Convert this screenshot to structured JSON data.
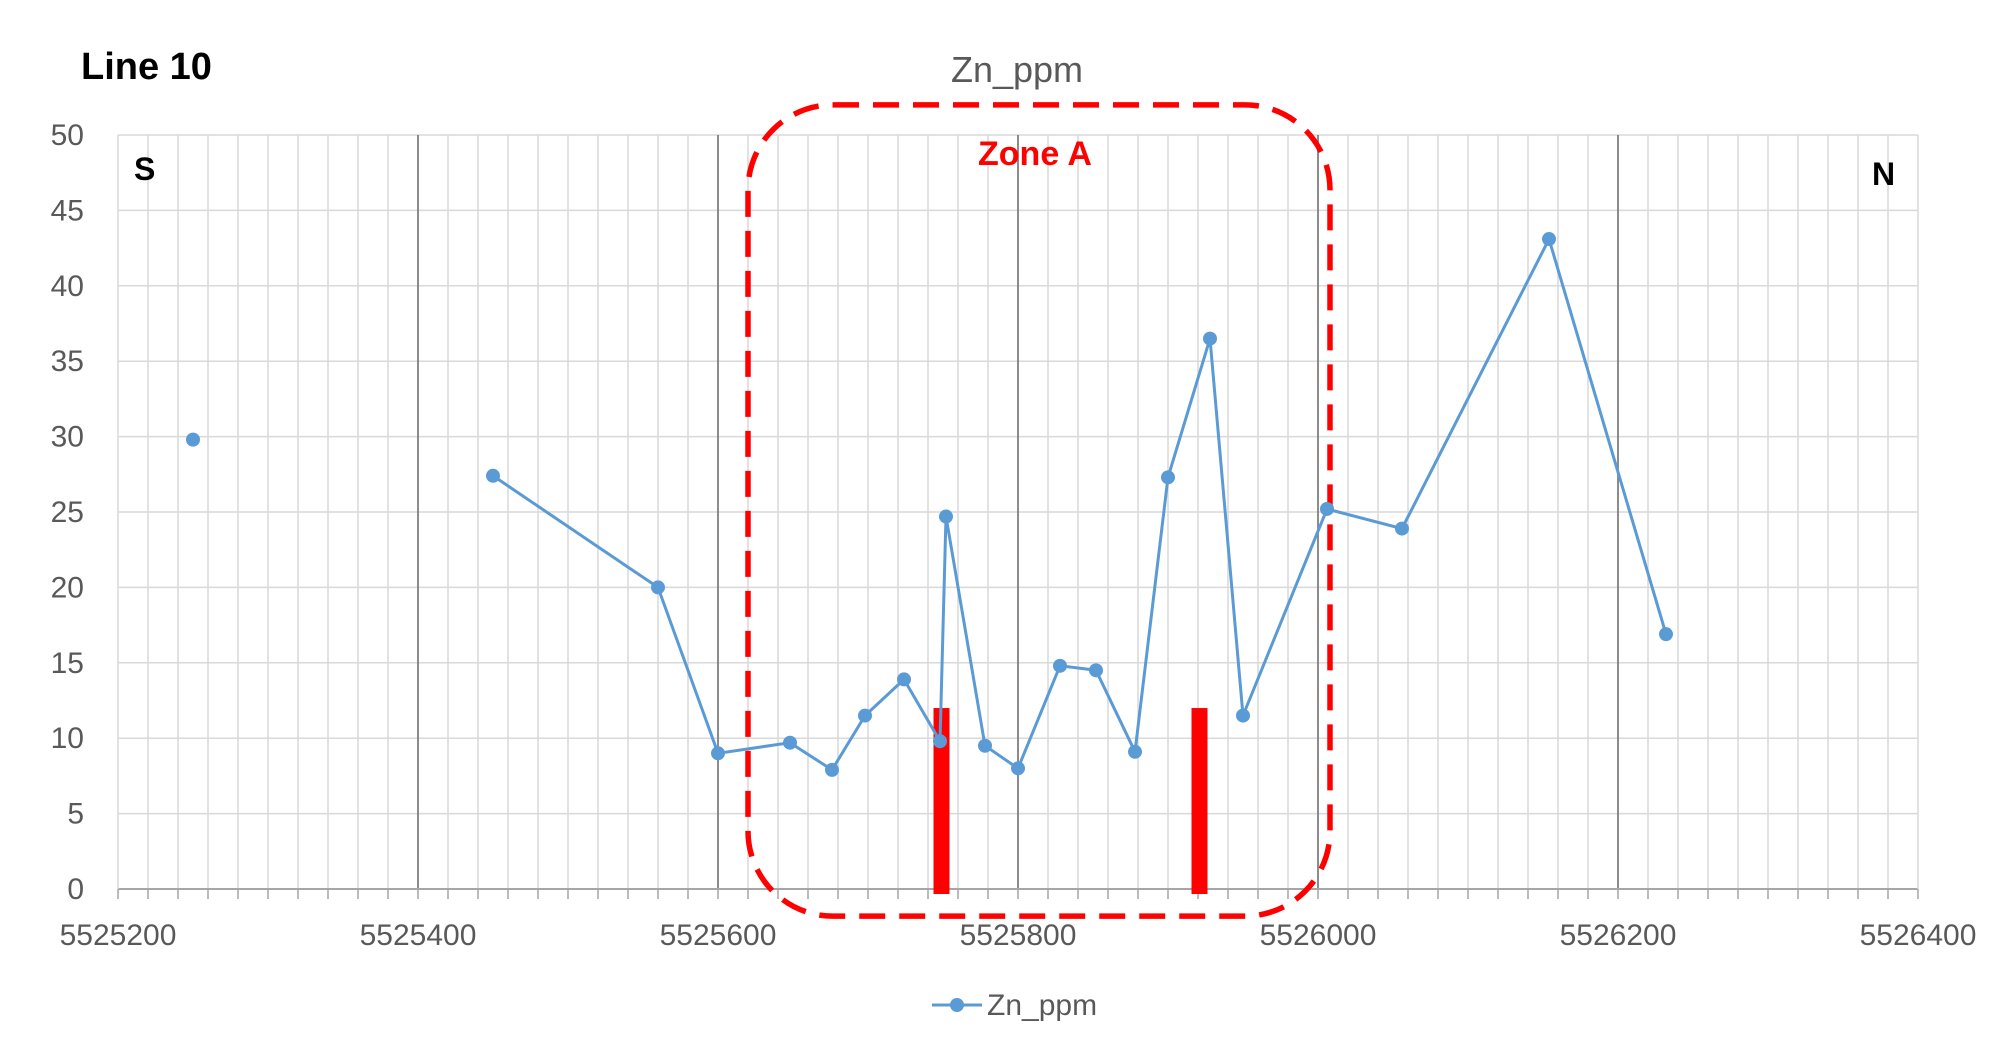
{
  "chart_data": {
    "type": "line",
    "title": "Zn_ppm",
    "corner_label": "Line 10",
    "direction_left": "S",
    "direction_right": "N",
    "zone_label": "Zone A",
    "xlim": [
      5525200,
      5526400
    ],
    "ylim": [
      0,
      50
    ],
    "x_ticks": [
      5525200,
      5525400,
      5525600,
      5525800,
      5526000,
      5526200,
      5526400
    ],
    "y_ticks": [
      0,
      5,
      10,
      15,
      20,
      25,
      30,
      35,
      40,
      45,
      50
    ],
    "x_tick_labels": [
      "5525200",
      "5525400",
      "5525600",
      "5525800",
      "5526000",
      "5526200",
      "5526400"
    ],
    "y_tick_labels": [
      "0",
      "5",
      "10",
      "15",
      "20",
      "25",
      "30",
      "35",
      "40",
      "45",
      "50"
    ],
    "grid": true,
    "legend": "bottom",
    "series": [
      {
        "name": "Zn_ppm",
        "color": "#5B9BD5",
        "points": [
          [
            5525250,
            29.8
          ],
          null,
          [
            5525450,
            27.4
          ],
          [
            5525560,
            20
          ],
          [
            5525600,
            9
          ],
          [
            5525648,
            9.7
          ],
          [
            5525676,
            7.9
          ],
          [
            5525698,
            11.5
          ],
          [
            5525724,
            13.9
          ],
          [
            5525748,
            9.8
          ],
          [
            5525752,
            24.7
          ],
          [
            5525778,
            9.5
          ],
          [
            5525800,
            8
          ],
          [
            5525828,
            14.8
          ],
          [
            5525852,
            14.5
          ],
          [
            5525878,
            9.1
          ],
          [
            5525900,
            27.3
          ],
          [
            5525928,
            36.5
          ],
          [
            5525950,
            11.5
          ],
          [
            5526006,
            25.2
          ],
          [
            5526056,
            23.9
          ],
          [
            5526154,
            43.1
          ],
          [
            5526232,
            16.9
          ]
        ]
      }
    ],
    "markers": [
      {
        "x": 5525749,
        "y_from": 0,
        "y_to": 12,
        "color": "#FF0000"
      },
      {
        "x": 5525921,
        "y_from": 0,
        "y_to": 12,
        "color": "#FF0000"
      }
    ],
    "zone": {
      "x_from": 5525620,
      "x_to": 5526008,
      "y_from": -1.8,
      "y_to": 52,
      "color": "#FF0000"
    }
  }
}
